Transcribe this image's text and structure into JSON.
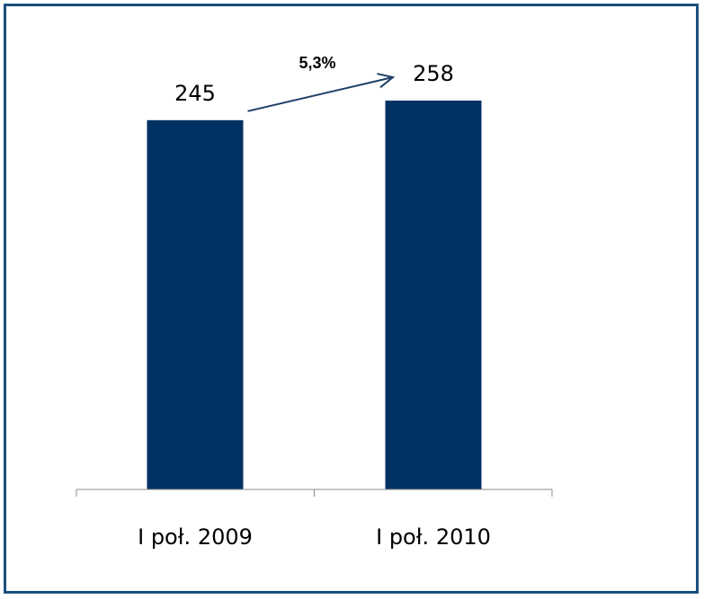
{
  "chart_data": {
    "type": "bar",
    "categories": [
      "I poł. 2009",
      "I poł. 2010"
    ],
    "values": [
      245,
      258
    ],
    "value_labels": [
      "245",
      "258"
    ],
    "annotation": "5,3%",
    "bar_color": "#003263",
    "frame_color": "#1a4f7e",
    "axis_color": "#8c8c8c",
    "title": "",
    "xlabel": "",
    "ylabel": "",
    "ylim": [
      0,
      258
    ],
    "grid": false,
    "legend": "none"
  }
}
